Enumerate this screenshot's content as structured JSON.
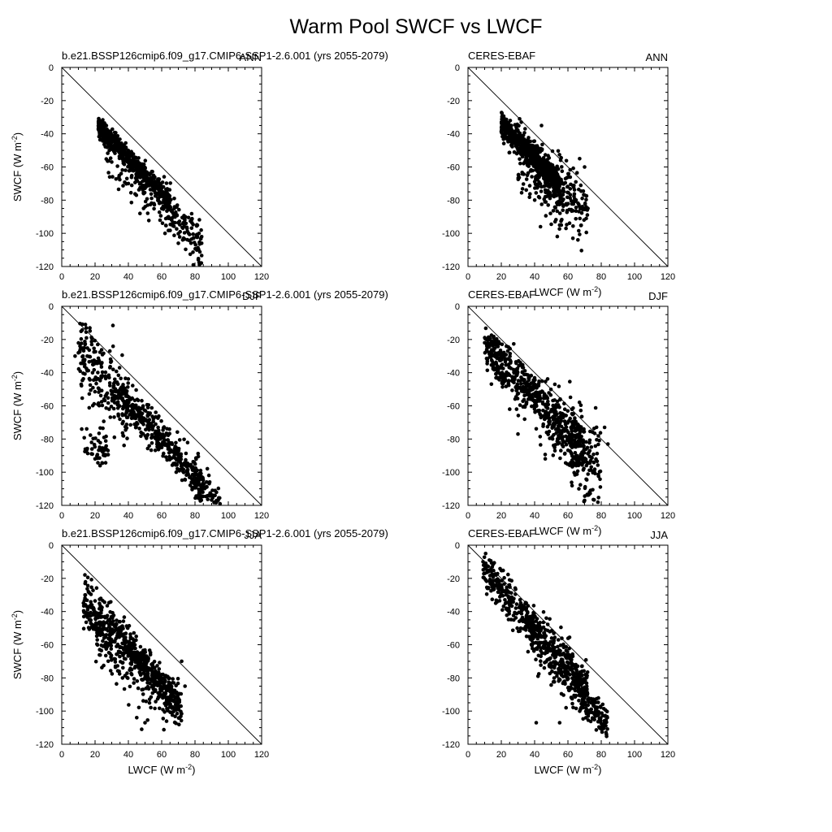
{
  "figure": {
    "title": "Warm Pool SWCF vs LWCF"
  },
  "chart_data": [
    {
      "type": "scatter",
      "panel": "model-ann",
      "left_label": "b.e21.BSSP126cmip6.f09_g17.CMIP6-SSP1-2.6.001 (yrs 2055-2079)",
      "right_label": "ANN",
      "xlabel": "",
      "ylabel": "SWCF (W m-2)",
      "ylabel_main": "SWCF (W m",
      "ylabel_sup": "-2",
      "ylabel_close": ")",
      "xlim": [
        0,
        120
      ],
      "ylim": [
        -120,
        0
      ],
      "xticks": [
        "0",
        "20",
        "40",
        "60",
        "80",
        "100",
        "120"
      ],
      "yticks": [
        "0",
        "-20",
        "-40",
        "-60",
        "-80",
        "-100",
        "-120"
      ],
      "reference_line": "y = -x",
      "cloud": [
        {
          "n": 560,
          "x": [
            22,
            65
          ],
          "s": -1.06,
          "b": -12,
          "sd": 3.2,
          "xp": 1.3
        },
        {
          "n": 110,
          "x": [
            60,
            84
          ],
          "s": -1.15,
          "b": -10,
          "sd": 6.5,
          "xp": 1
        },
        {
          "n": 110,
          "x": [
            25,
            70
          ],
          "s": -1.05,
          "b": -23,
          "sd": 6,
          "xp": 1
        }
      ],
      "points": [
        [
          22,
          -35
        ],
        [
          24,
          -33
        ],
        [
          84,
          -106
        ],
        [
          82,
          -116
        ],
        [
          79,
          -119
        ],
        [
          84,
          -102
        ],
        [
          62,
          -100
        ],
        [
          70,
          -106
        ],
        [
          30,
          -57
        ],
        [
          40,
          -70
        ],
        [
          47,
          -88
        ]
      ]
    },
    {
      "type": "scatter",
      "panel": "obs-ann",
      "left_label": "CERES-EBAF",
      "right_label": "ANN",
      "xlabel": "LWCF (W m-2)",
      "xlabel_main": "LWCF (W m",
      "xlabel_sup": "-2",
      "xlabel_close": ")",
      "ylabel": "",
      "xlim": [
        0,
        120
      ],
      "ylim": [
        -120,
        0
      ],
      "xticks": [
        "0",
        "20",
        "40",
        "60",
        "80",
        "100",
        "120"
      ],
      "yticks": [
        "0",
        "-20",
        "-40",
        "-60",
        "-80",
        "-100",
        "-120"
      ],
      "reference_line": "y = -x",
      "cloud": [
        {
          "n": 580,
          "x": [
            20,
            55
          ],
          "s": -1.0,
          "b": -15,
          "sd": 4,
          "xp": 1.2
        },
        {
          "n": 220,
          "x": [
            40,
            72
          ],
          "s": -0.9,
          "b": -22,
          "sd": 9,
          "xp": 1
        },
        {
          "n": 70,
          "x": [
            30,
            60
          ],
          "s": -1.0,
          "b": -30,
          "sd": 8,
          "xp": 1
        }
      ],
      "points": [
        [
          31,
          -31
        ],
        [
          32,
          -33
        ],
        [
          66,
          -104
        ],
        [
          63,
          -103
        ],
        [
          55,
          -95
        ],
        [
          72,
          -85
        ],
        [
          67,
          -55
        ],
        [
          40,
          -49
        ],
        [
          70,
          -60
        ]
      ]
    },
    {
      "type": "scatter",
      "panel": "model-djf",
      "left_label": "b.e21.BSSP126cmip6.f09_g17.CMIP6-SSP1-2.6.001 (yrs 2055-2079)",
      "right_label": "DJF",
      "xlabel": "",
      "ylabel": "SWCF (W m-2)",
      "ylabel_main": "SWCF (W m",
      "ylabel_sup": "-2",
      "ylabel_close": ")",
      "xlim": [
        0,
        120
      ],
      "ylim": [
        -120,
        0
      ],
      "xticks": [
        "0",
        "20",
        "40",
        "60",
        "80",
        "100",
        "120"
      ],
      "yticks": [
        "0",
        "-20",
        "-40",
        "-60",
        "-80",
        "-100",
        "-120"
      ],
      "reference_line": "y = -x",
      "cloud": [
        {
          "n": 240,
          "x": [
            10,
            40
          ],
          "s": -1.15,
          "b": -15,
          "sd": 11,
          "xp": 1
        },
        {
          "n": 380,
          "x": [
            38,
            85
          ],
          "s": -1.12,
          "b": -13,
          "sd": 5.5,
          "xp": 1
        },
        {
          "n": 50,
          "x": [
            13,
            28
          ],
          "s": -0.1,
          "b": -83,
          "sd": 5,
          "xp": 1
        },
        {
          "n": 60,
          "x": [
            78,
            95
          ],
          "s": -1.2,
          "b": -6,
          "sd": 5,
          "xp": 1
        }
      ],
      "points": [
        [
          11,
          -24
        ],
        [
          14,
          -23
        ],
        [
          18,
          -23
        ],
        [
          10,
          -28
        ],
        [
          8,
          -30
        ],
        [
          12,
          -74
        ],
        [
          20,
          -92
        ],
        [
          26,
          -90
        ],
        [
          95,
          -119
        ],
        [
          92,
          -114
        ]
      ]
    },
    {
      "type": "scatter",
      "panel": "obs-djf",
      "left_label": "CERES-EBAF",
      "right_label": "DJF",
      "xlabel": "LWCF (W m-2)",
      "xlabel_main": "LWCF (W m",
      "xlabel_sup": "-2",
      "xlabel_close": ")",
      "ylabel": "",
      "xlim": [
        0,
        120
      ],
      "ylim": [
        -120,
        0
      ],
      "xticks": [
        "0",
        "20",
        "40",
        "60",
        "80",
        "100",
        "120"
      ],
      "yticks": [
        "0",
        "-20",
        "-40",
        "-60",
        "-80",
        "-100",
        "-120"
      ],
      "reference_line": "y = -x",
      "cloud": [
        {
          "n": 300,
          "x": [
            10,
            40
          ],
          "s": -1.0,
          "b": -14,
          "sd": 7,
          "xp": 1
        },
        {
          "n": 320,
          "x": [
            40,
            70
          ],
          "s": -1.1,
          "b": -11,
          "sd": 9,
          "xp": 1
        },
        {
          "n": 140,
          "x": [
            60,
            80
          ],
          "s": -1.0,
          "b": -20,
          "sd": 13,
          "xp": 1
        }
      ],
      "points": [
        [
          10,
          -22
        ],
        [
          13,
          -20
        ],
        [
          30,
          -77
        ],
        [
          84,
          -83
        ],
        [
          82,
          -73
        ],
        [
          70,
          -117
        ],
        [
          73,
          -112
        ],
        [
          25,
          -62
        ]
      ]
    },
    {
      "type": "scatter",
      "panel": "model-jja",
      "left_label": "b.e21.BSSP126cmip6.f09_g17.CMIP6-SSP1-2.6.001 (yrs 2055-2079)",
      "right_label": "JJA",
      "xlabel": "LWCF (W m-2)",
      "xlabel_main": "LWCF (W m",
      "xlabel_sup": "-2",
      "xlabel_close": ")",
      "ylabel": "SWCF (W m-2)",
      "ylabel_main": "SWCF (W m",
      "ylabel_sup": "-2",
      "ylabel_close": ")",
      "xlim": [
        0,
        120
      ],
      "ylim": [
        -120,
        0
      ],
      "xticks": [
        "0",
        "20",
        "40",
        "60",
        "80",
        "100",
        "120"
      ],
      "yticks": [
        "0",
        "-20",
        "-40",
        "-60",
        "-80",
        "-100",
        "-120"
      ],
      "reference_line": "y = -x",
      "cloud": [
        {
          "n": 150,
          "x": [
            13,
            30
          ],
          "s": -1.1,
          "b": -20,
          "sd": 8,
          "xp": 1
        },
        {
          "n": 400,
          "x": [
            30,
            72
          ],
          "s": -1.2,
          "b": -12,
          "sd": 5,
          "xp": 1
        },
        {
          "n": 200,
          "x": [
            20,
            70
          ],
          "s": -0.8,
          "b": -40,
          "sd": 10,
          "xp": 1
        }
      ],
      "points": [
        [
          16,
          -28
        ],
        [
          14,
          -30
        ],
        [
          48,
          -111
        ],
        [
          50,
          -107
        ],
        [
          45,
          -104
        ],
        [
          72,
          -70
        ],
        [
          74,
          -85
        ]
      ]
    },
    {
      "type": "scatter",
      "panel": "obs-jja",
      "left_label": "CERES-EBAF",
      "right_label": "JJA",
      "xlabel": "LWCF (W m-2)",
      "xlabel_main": "LWCF (W m",
      "xlabel_sup": "-2",
      "xlabel_close": ")",
      "ylabel": "",
      "xlim": [
        0,
        120
      ],
      "ylim": [
        -120,
        0
      ],
      "xticks": [
        "0",
        "20",
        "40",
        "60",
        "80",
        "100",
        "120"
      ],
      "yticks": [
        "0",
        "-20",
        "-40",
        "-60",
        "-80",
        "-100",
        "-120"
      ],
      "reference_line": "y = -x",
      "cloud": [
        {
          "n": 240,
          "x": [
            9,
            40
          ],
          "s": -1.15,
          "b": -4,
          "sd": 6,
          "xp": 1
        },
        {
          "n": 420,
          "x": [
            38,
            72
          ],
          "s": -1.05,
          "b": -12,
          "sd": 8,
          "xp": 1
        },
        {
          "n": 110,
          "x": [
            68,
            84
          ],
          "s": -1.05,
          "b": -20,
          "sd": 5,
          "xp": 1
        }
      ],
      "points": [
        [
          9,
          -10
        ],
        [
          10,
          -12
        ],
        [
          41,
          -107
        ],
        [
          55,
          -107
        ],
        [
          80,
          -110
        ],
        [
          82,
          -106
        ],
        [
          47,
          -44
        ]
      ]
    }
  ]
}
